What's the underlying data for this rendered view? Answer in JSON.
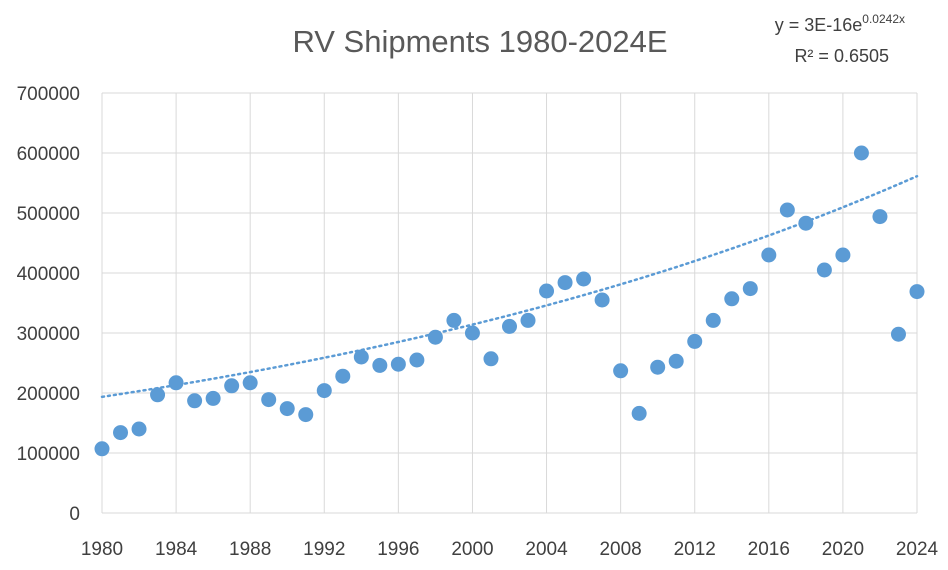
{
  "chart_data": {
    "type": "scatter",
    "title": "RV Shipments 1980-2024E",
    "xlabel": "",
    "ylabel": "",
    "xlim": [
      1980,
      2024
    ],
    "ylim": [
      0,
      700000
    ],
    "x_ticks": [
      1980,
      1984,
      1988,
      1992,
      1996,
      2000,
      2004,
      2008,
      2012,
      2016,
      2020,
      2024
    ],
    "y_ticks": [
      0,
      100000,
      200000,
      300000,
      400000,
      500000,
      600000,
      700000
    ],
    "grid": true,
    "legend": "none",
    "colors": {
      "points": "#5b9bd5",
      "trendline": "#5b9bd5",
      "grid": "#d9d9d9",
      "text": "#404040"
    },
    "trendline": {
      "type": "exponential",
      "equation_prefix": "y = 3E-16e",
      "equation_exponent": "0.0242x",
      "r_squared_label": "R² = 0.6505",
      "a": 3e-16,
      "b": 0.0242
    },
    "series": [
      {
        "x": [
          1980,
          1981,
          1982,
          1983,
          1984,
          1985,
          1986,
          1987,
          1988,
          1989,
          1990,
          1991,
          1992,
          1993,
          1994,
          1995,
          1996,
          1997,
          1998,
          1999,
          2000,
          2001,
          2002,
          2003,
          2004,
          2005,
          2006,
          2007,
          2008,
          2009,
          2010,
          2011,
          2012,
          2013,
          2014,
          2015,
          2016,
          2017,
          2018,
          2019,
          2020,
          2021,
          2022,
          2023,
          2024
        ],
        "values": [
          107000,
          134000,
          140000,
          197000,
          217000,
          187000,
          191000,
          212000,
          217000,
          189000,
          174000,
          164000,
          204000,
          228000,
          260000,
          246000,
          248000,
          255000,
          293000,
          321000,
          300000,
          257000,
          311000,
          321000,
          370000,
          384000,
          390000,
          355000,
          237000,
          166000,
          243000,
          253000,
          286000,
          321000,
          357000,
          374000,
          430000,
          505000,
          483000,
          405000,
          430000,
          600000,
          494000,
          298000,
          369000
        ]
      }
    ]
  }
}
